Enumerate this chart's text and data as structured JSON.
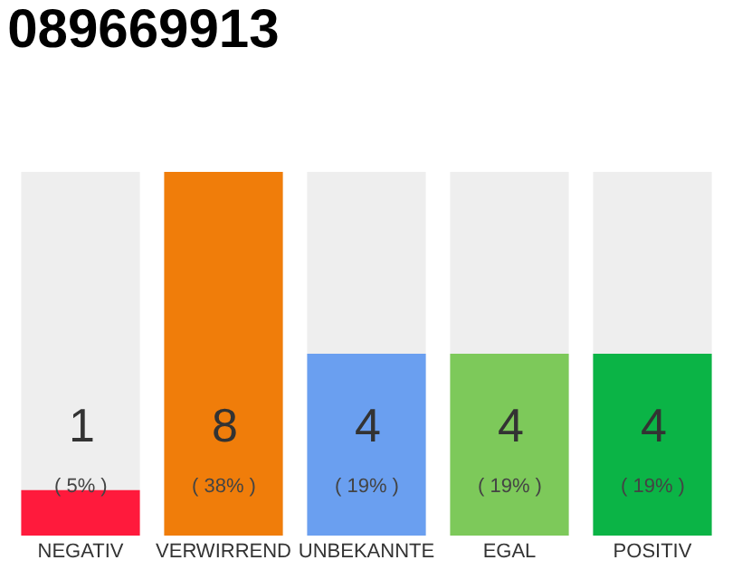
{
  "chart_data": {
    "type": "bar",
    "title": "089669913",
    "categories": [
      "NEGATIV",
      "VERWIRREND",
      "UNBEKANNTE",
      "EGAL",
      "POSITIV"
    ],
    "values": [
      1,
      8,
      4,
      4,
      4
    ],
    "colors": [
      "#ff1a3c",
      "#f07d0a",
      "#6a9ff0",
      "#7dc95a",
      "#0bb446"
    ],
    "value_labels": [
      "1\n( 5% )",
      "8\n( 38% )",
      "4\n( 19% )",
      "4\n( 19% )",
      "4\n( 19% )"
    ],
    "grid": false,
    "legend": false
  }
}
